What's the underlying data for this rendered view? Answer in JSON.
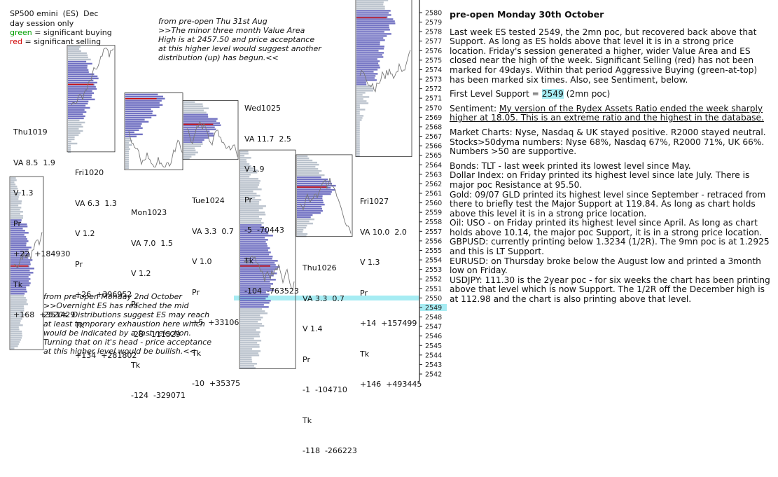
{
  "chart_data": {
    "type": "market-profile",
    "title": "SP500 emini  (ES)  Dec",
    "legend": {
      "line2": "day session only",
      "green_label": "green",
      "green_text": " = significant buying",
      "red_label": "red",
      "red_text": " = significant selling"
    },
    "price_axis": {
      "min": 2542,
      "max": 2580,
      "ticks": [
        "2580",
        "2579",
        "2578",
        "2577",
        "2576",
        "2575",
        "2574",
        "2573",
        "2572",
        "2571",
        "2570",
        "2569",
        "2568",
        "2567",
        "2566",
        "2565",
        "2564",
        "2563",
        "2562",
        "2561",
        "2560",
        "2559",
        "2558",
        "2557",
        "2556",
        "2555",
        "2554",
        "2553",
        "2552",
        "2551",
        "2550",
        "2549",
        "2548",
        "2547",
        "2546",
        "2545",
        "2544",
        "2543",
        "2542"
      ]
    },
    "support_level": 2549,
    "sessions": [
      {
        "name": "Thu1019",
        "va": "VA 8.5  1.9",
        "v": "V 1.3",
        "pr_label": "Pr",
        "pr": "+22  +184930",
        "tk_label": "Tk",
        "tk": "+168  +351429",
        "box_lo": 2543.6,
        "box_hi": 2561.8,
        "va_lo": 2549.5,
        "va_hi": 2557.5,
        "poc": 2552.4,
        "close": 2558.5
      },
      {
        "name": "Fri1020",
        "va": "VA 6.3  1.3",
        "v": "V 1.2",
        "pr_label": "Pr",
        "pr": "+26  +396952",
        "tk_label": "Tk",
        "tk": "+134  +281802",
        "box_lo": 2564.4,
        "box_hi": 2575.6,
        "va_lo": 2568,
        "va_hi": 2574,
        "poc": 2571.5,
        "close": 2572.5
      },
      {
        "name": "Mon1023",
        "va": "VA 7.0  1.5",
        "v": "V 1.2",
        "pr_label": "Pr",
        "pr": "-28  -111529",
        "tk_label": "Tk",
        "tk": "-124  -329071",
        "box_lo": 2562.5,
        "box_hi": 2570.6,
        "va_lo": 2566,
        "va_hi": 2571.5,
        "poc": 2570,
        "close": 2565
      },
      {
        "name": "Tue1024",
        "va": "VA 3.3  0.7",
        "v": "V 1.0",
        "pr_label": "Pr",
        "pr": "+5  +33106",
        "tk_label": "Tk",
        "tk": "-10  +35375",
        "box_lo": 2563.6,
        "box_hi": 2569.8,
        "va_lo": 2565.5,
        "va_hi": 2568.5,
        "poc": 2567.3,
        "close": 2566.5
      },
      {
        "name": "Wed1025",
        "va": "VA 11.7  2.5",
        "v": "V 1.9",
        "pr_label": "Pr",
        "pr": "-5  -70443",
        "tk_label": "Tk",
        "tk": "-104  -763523",
        "box_lo": 2541.6,
        "box_hi": 2564.6,
        "va_lo": 2548,
        "va_hi": 2557,
        "poc": 2552.4,
        "close": 2553
      },
      {
        "name": "Thu1026",
        "va": "VA 3.3  0.7",
        "v": "V 1.4",
        "pr_label": "Pr",
        "pr": "-1  -104710",
        "tk_label": "Tk",
        "tk": "-118  -266223",
        "box_lo": 2555.5,
        "box_hi": 2564.1,
        "va_lo": 2557.5,
        "va_hi": 2562,
        "poc": 2560.7,
        "close": 2558
      },
      {
        "name": "Fri1027",
        "va": "VA 10.0  2.0",
        "v": "V 1.3",
        "pr_label": "Pr",
        "pr": "+14  +157499",
        "tk_label": "Tk",
        "tk": "+146  +493445",
        "box_lo": 2563.9,
        "box_hi": 2580.5,
        "va_lo": 2571.5,
        "va_hi": 2579.5,
        "poc": 2578.5,
        "close": 2577.5
      }
    ],
    "annotations": [
      {
        "name": "note-august",
        "lines": [
          "from pre-open Thu 31st Aug",
          ">>The minor three month Value Area",
          "High is at 2457.50 and price acceptance",
          "at this higher level would suggest another",
          "distribution (up) has begun.<<"
        ]
      },
      {
        "name": "note-october",
        "lines": [
          "from pre-open Monday 2nd October",
          ">>Overnight ES has reached the mid",
          "2520s. Distributions suggest ES may reach",
          "at least temporary exhaustion here which",
          "would be indicated by a fast rejection.",
          "Turning that on it's head  - price acceptance",
          "at this higher level would be bullish.<<"
        ]
      }
    ]
  },
  "article": {
    "title": "pre-open Monday 30th October",
    "p1": "Last week ES tested 2549, the 2mn poc, but recovered back above that Support. As long as ES holds above that level it is in a strong price location. Friday's session generated a higher, wider Value Area and ES closed near the high of the week. Significant Selling (red) has not been marked for 49days. Within that period Aggressive Buying (green-at-top) has been marked six times. Also, see Sentiment, below.",
    "support_prefix": "First Level Support = ",
    "support_value": "2549",
    "support_suffix": " (2mn poc)",
    "sentiment_prefix": "Sentiment: ",
    "sentiment_link": "My version of the Rydex Assets Ratio ended the week sharply higher at 18.05. This is an extreme ratio and the highest in the database.",
    "market_charts": "Market Charts: Nyse, Nasdaq & UK stayed positive. R2000 stayed neutral.",
    "stocks": "Stocks>50dyma numbers: Nyse 68%, Nasdaq 67%, R2000 71%, UK 66%. Numbers >50 are supportive.",
    "bonds": "Bonds: TLT - last week printed its lowest level since May.",
    "dollar": "Dollar Index: on Friday printed its highest level since late July. There is major poc Resistance at 95.50.",
    "gold": "Gold: 09/07 GLD printed its highest level since September - retraced from there to  briefly test the Major Support at 119.84. As long as chart holds above this level it is in a strong price location.",
    "oil": "Oil: USO - on Friday printed its highest level since April. As long as chart holds above 10.14, the major poc Support, it is in a strong price location.",
    "gbpusd": "GBPUSD: currently printing below 1.3234 (1/2R). The 9mn poc is at 1.2925 and this is LT Support.",
    "eurusd": "EURUSD: on Thursday broke below the August low and printed a 3month low on Friday.",
    "usdjpy": "USDJPY: 111.30 is the 2year poc - for six weeks the chart has been printing above that level which is now Support. The 1/2R off the December high is at 112.98 and the chart is also printing above that level."
  },
  "colors": {
    "va_fill": "#5a5ab8",
    "profile_fill": "#b4bcc8",
    "poc_line": "#cc1111",
    "support_band": "#a6ecf3",
    "price_line": "#777777"
  }
}
